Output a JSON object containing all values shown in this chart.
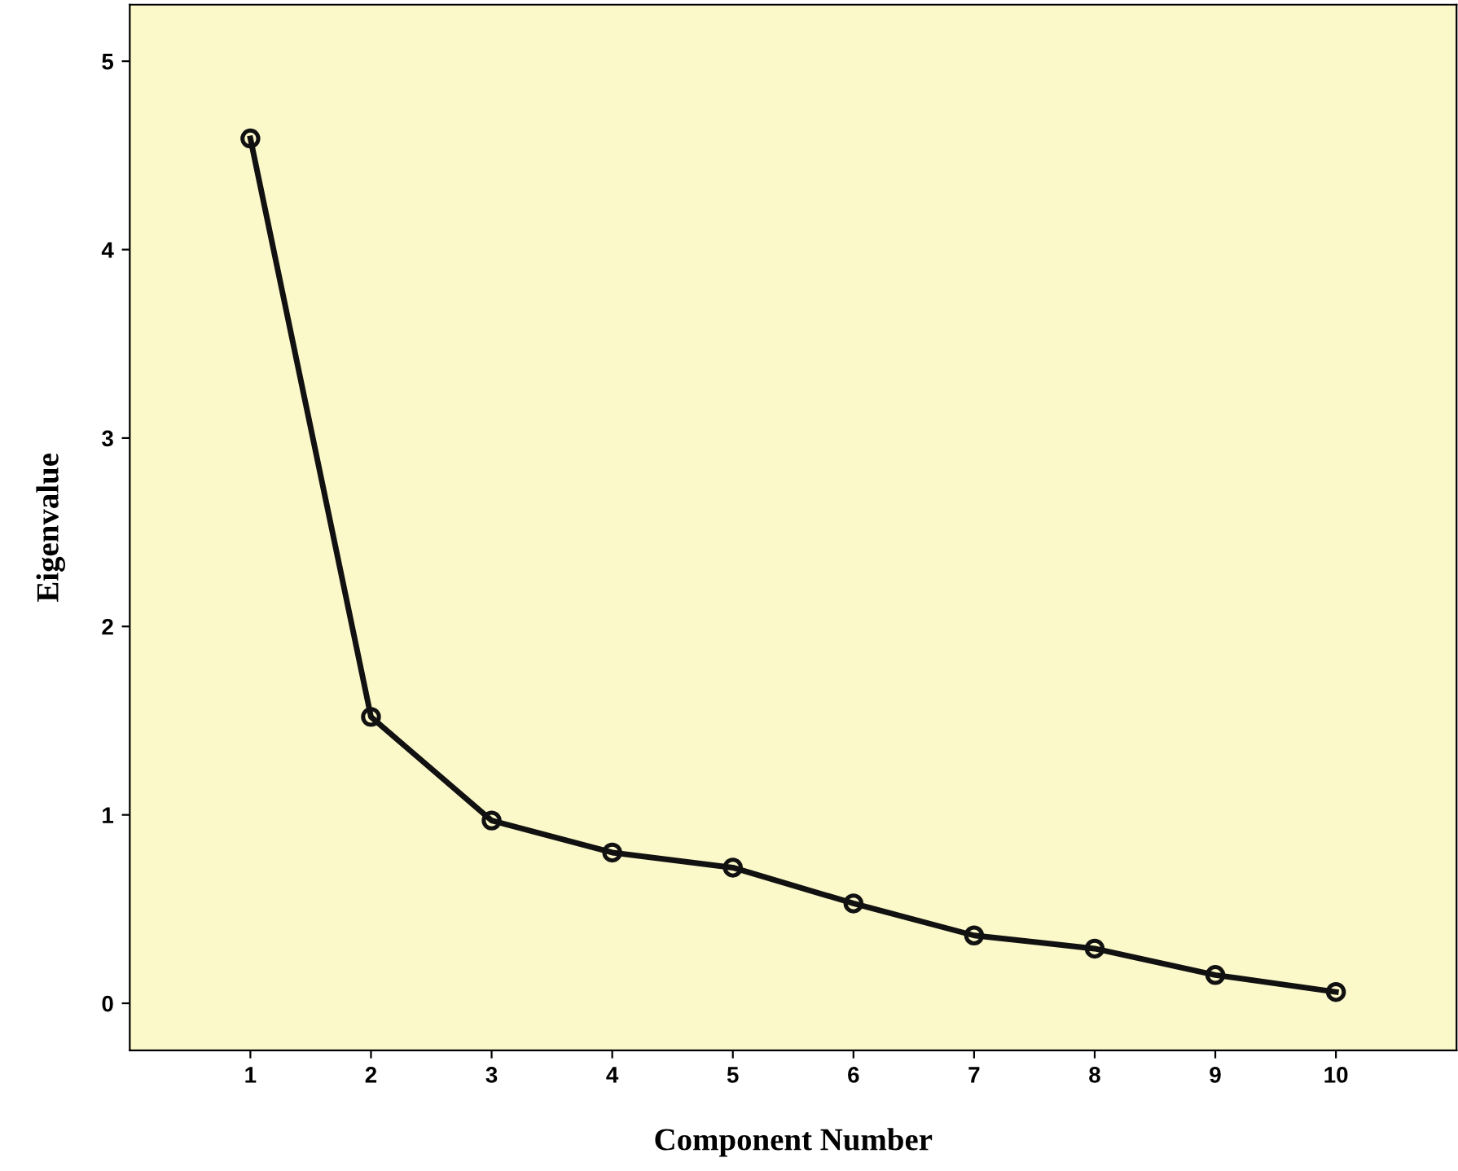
{
  "chart_data": {
    "type": "line",
    "xlabel": "Component Number",
    "ylabel": "Eigenvalue",
    "x": [
      1,
      2,
      3,
      4,
      5,
      6,
      7,
      8,
      9,
      10
    ],
    "series": [
      {
        "color": "#111111",
        "values": [
          4.59,
          1.52,
          0.97,
          0.8,
          0.72,
          0.53,
          0.36,
          0.29,
          0.15,
          0.06
        ]
      }
    ],
    "xlim": [
      0,
      11
    ],
    "xticks": [
      1,
      2,
      3,
      4,
      5,
      6,
      7,
      8,
      9,
      10
    ],
    "ylim": [
      -0.25,
      5.3
    ],
    "yticks": [
      0,
      1,
      2,
      3,
      4,
      5
    ],
    "grid": false,
    "legend": false,
    "marker": "circle",
    "line_style": "solid"
  }
}
